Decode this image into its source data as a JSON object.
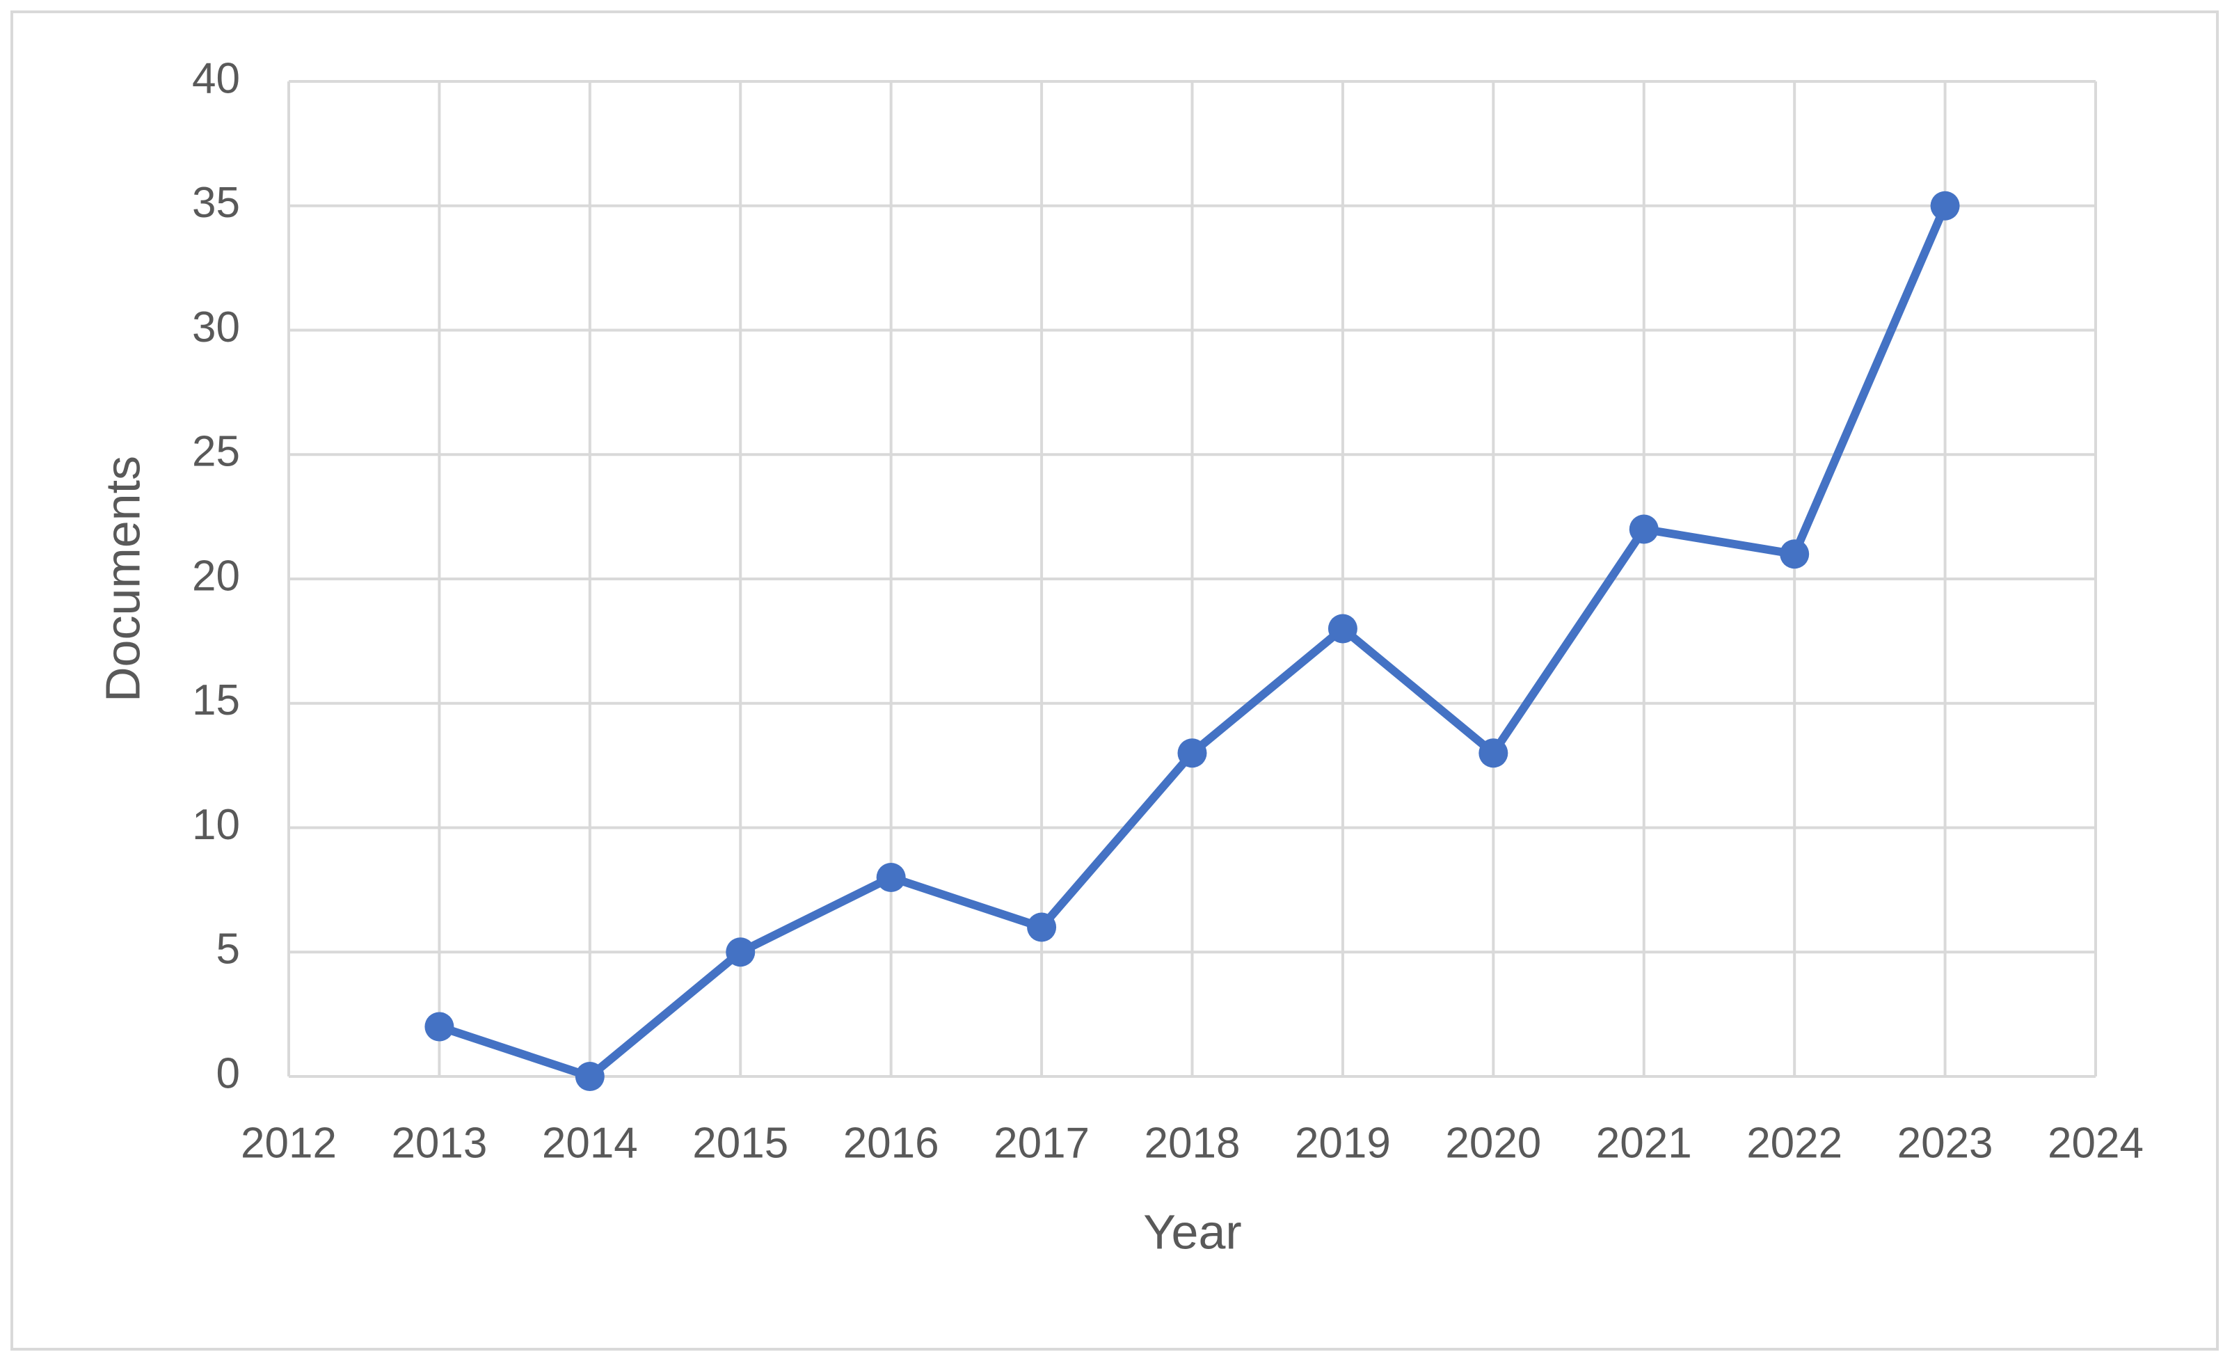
{
  "chart_data": {
    "type": "line",
    "x_label": "Year",
    "y_label": "Documents",
    "x": [
      2013,
      2014,
      2015,
      2016,
      2017,
      2018,
      2019,
      2020,
      2021,
      2022,
      2023
    ],
    "values": [
      2,
      0,
      5,
      8,
      6,
      13,
      18,
      13,
      22,
      21,
      35
    ],
    "color": "#4472c4",
    "xlim": [
      2012,
      2024
    ],
    "xticks": [
      2012,
      2013,
      2014,
      2015,
      2016,
      2017,
      2018,
      2019,
      2020,
      2021,
      2022,
      2023,
      2024
    ],
    "ylim": [
      0,
      40
    ],
    "yticks": [
      0,
      5,
      10,
      15,
      20,
      25,
      30,
      35,
      40
    ],
    "grid": true,
    "markers": true
  }
}
